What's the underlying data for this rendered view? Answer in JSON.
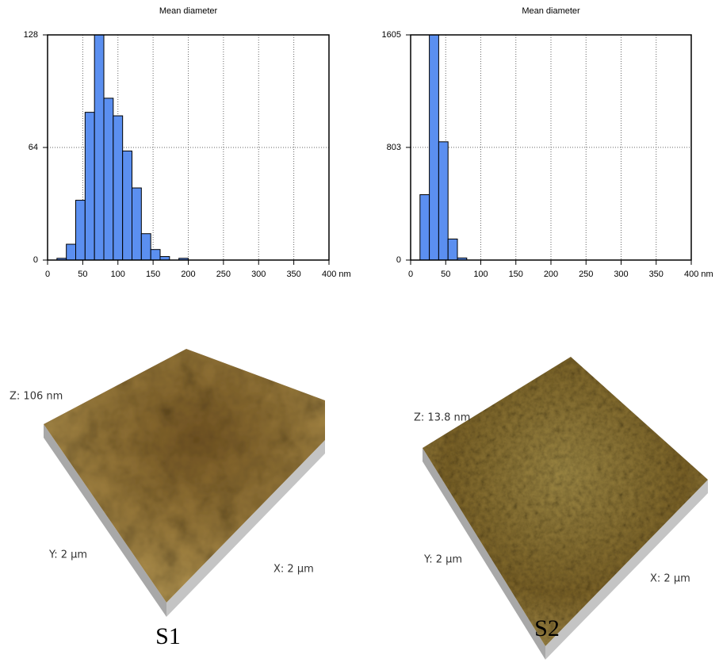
{
  "chart_data": [
    {
      "type": "histogram",
      "title": "Mean diameter",
      "color": "#5b8ff0",
      "bins": [
        0,
        13.33,
        26.67,
        40,
        53.33,
        66.67,
        80,
        93.33,
        106.67,
        120,
        133.33,
        146.67,
        160,
        173.33,
        186.67,
        200,
        213.33,
        226.67,
        240,
        253.33,
        266.67,
        280,
        293.33,
        306.67,
        320,
        333.33,
        346.67,
        360,
        373.33,
        386.67,
        400
      ],
      "values": [
        0,
        1,
        9,
        34,
        84,
        128,
        92,
        82,
        62,
        41,
        15,
        6,
        2,
        0,
        1,
        0,
        0,
        0,
        0,
        0,
        0,
        0,
        0,
        0,
        0,
        0,
        0,
        0,
        0,
        0
      ],
      "xlim": [
        0,
        400
      ],
      "xticks": [
        0,
        50,
        100,
        150,
        200,
        250,
        300,
        350,
        {
          "value": 400,
          "label": "400 nm"
        }
      ],
      "ylim": [
        0,
        128
      ],
      "yticks": [
        0,
        64,
        128
      ],
      "grid": true
    },
    {
      "type": "histogram",
      "title": "Mean diameter",
      "color": "#5b8ff0",
      "bins": [
        0,
        13.33,
        26.67,
        40,
        53.33,
        66.67,
        80,
        93.33,
        106.67,
        120,
        133.33,
        146.67,
        160,
        173.33,
        186.67,
        200,
        213.33,
        226.67,
        240,
        253.33,
        266.67,
        280,
        293.33,
        306.67,
        320,
        333.33,
        346.67,
        360,
        373.33,
        386.67,
        400
      ],
      "values": [
        0,
        466,
        1605,
        843,
        150,
        15,
        0,
        0,
        0,
        0,
        0,
        0,
        0,
        0,
        0,
        0,
        0,
        0,
        0,
        0,
        0,
        0,
        0,
        0,
        0,
        0,
        0,
        0,
        0,
        0
      ],
      "xlim": [
        0,
        400
      ],
      "xticks": [
        0,
        50,
        100,
        150,
        200,
        250,
        300,
        350,
        {
          "value": 400,
          "label": "400 nm"
        }
      ],
      "ylim": [
        0,
        1605
      ],
      "yticks": [
        0,
        803,
        1605
      ],
      "grid": true
    }
  ],
  "afm": [
    {
      "z_label": "Z: 106 nm",
      "y_label": "Y: 2 µm",
      "x_label": "X: 2 µm",
      "caption": "S1"
    },
    {
      "z_label": "Z: 13.8 nm",
      "y_label": "Y: 2 µm",
      "x_label": "X: 2 µm",
      "caption": "S2"
    }
  ]
}
